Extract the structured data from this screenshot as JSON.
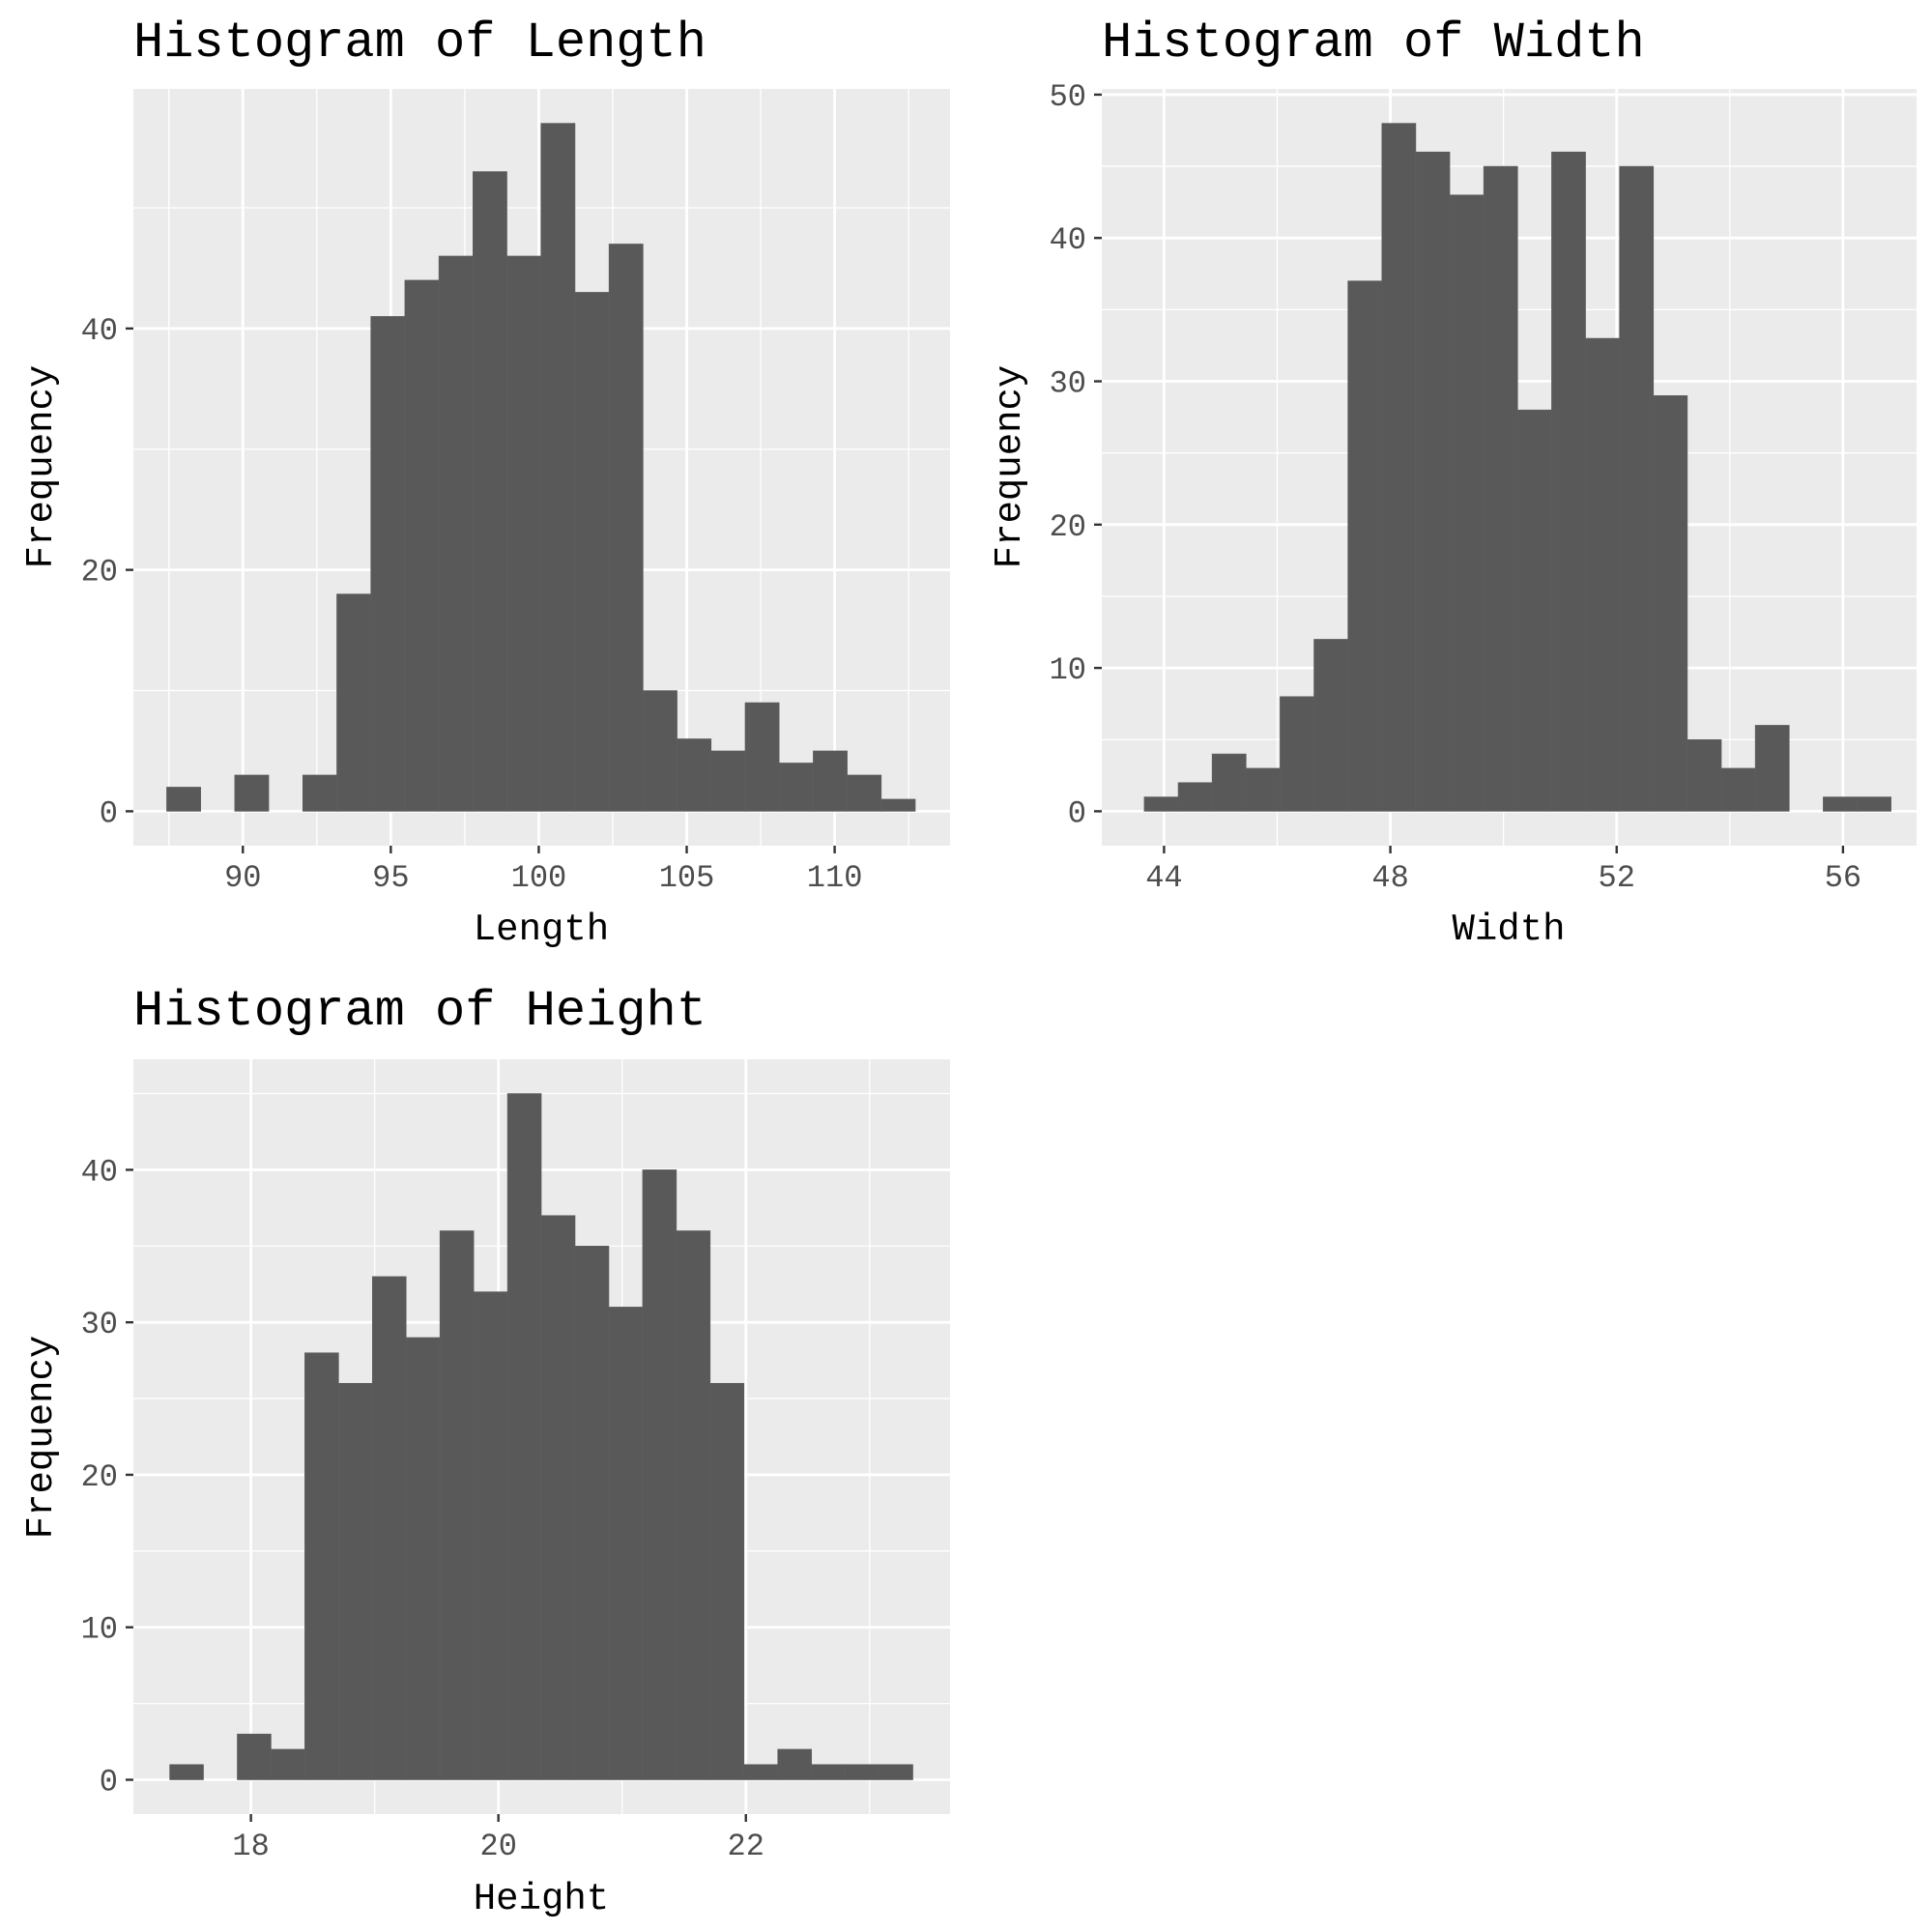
{
  "chart_data": [
    {
      "type": "bar",
      "title": "Histogram of Length",
      "xlabel": "Length",
      "ylabel": "Frequency",
      "xlim": [
        86.3,
        113.9
      ],
      "ylim": [
        -2.85,
        59.85
      ],
      "x_ticks": [
        90,
        95,
        100,
        105,
        110
      ],
      "x_tick_labels": [
        "90",
        "95",
        "100",
        "105",
        "110"
      ],
      "y_ticks": [
        0,
        20,
        40
      ],
      "y_tick_labels": [
        "0",
        "20",
        "40"
      ],
      "bin_width": 1.15,
      "bin_centers": [
        88.0,
        89.15,
        90.3,
        91.45,
        92.6,
        93.75,
        94.9,
        96.05,
        97.2,
        98.35,
        99.5,
        100.65,
        101.8,
        102.95,
        104.1,
        105.25,
        106.4,
        107.55,
        108.7,
        109.85,
        111.0,
        112.15
      ],
      "values": [
        2,
        0,
        3,
        0,
        3,
        18,
        41,
        44,
        46,
        53,
        46,
        57,
        43,
        47,
        10,
        6,
        5,
        9,
        4,
        5,
        3,
        1
      ],
      "grid": true,
      "bar_color": "#595959",
      "panel_color": "#ebebeb"
    },
    {
      "type": "bar",
      "title": "Histogram of Width",
      "xlabel": "Width",
      "ylabel": "Frequency",
      "xlim": [
        42.9,
        57.3
      ],
      "ylim": [
        -2.4,
        50.4
      ],
      "x_ticks": [
        44,
        48,
        52,
        56
      ],
      "x_tick_labels": [
        "44",
        "48",
        "52",
        "56"
      ],
      "y_ticks": [
        0,
        10,
        20,
        30,
        40,
        50
      ],
      "y_tick_labels": [
        "0",
        "10",
        "20",
        "30",
        "40",
        "50"
      ],
      "bin_width": 0.6,
      "bin_centers": [
        43.95,
        44.55,
        45.15,
        45.75,
        46.35,
        46.95,
        47.55,
        48.15,
        48.75,
        49.35,
        49.95,
        50.55,
        51.15,
        51.75,
        52.35,
        52.95,
        53.55,
        54.15,
        54.75,
        55.35,
        55.95,
        56.55
      ],
      "values": [
        1,
        2,
        4,
        3,
        8,
        12,
        37,
        48,
        46,
        43,
        45,
        28,
        46,
        33,
        45,
        29,
        5,
        3,
        6,
        0,
        1,
        1
      ],
      "grid": true,
      "bar_color": "#595959",
      "panel_color": "#ebebeb"
    },
    {
      "type": "bar",
      "title": "Histogram of Height",
      "xlabel": "Height",
      "ylabel": "Frequency",
      "xlim": [
        17.05,
        23.65
      ],
      "ylim": [
        -2.25,
        47.25
      ],
      "x_ticks": [
        18,
        20,
        22
      ],
      "x_tick_labels": [
        "18",
        "20",
        "22"
      ],
      "y_ticks": [
        0,
        10,
        20,
        30,
        40
      ],
      "y_tick_labels": [
        "0",
        "10",
        "20",
        "30",
        "40"
      ],
      "bin_width": 0.273,
      "bin_centers": [
        17.48,
        17.753,
        18.026,
        18.299,
        18.572,
        18.845,
        19.118,
        19.391,
        19.664,
        19.937,
        20.21,
        20.483,
        20.756,
        21.029,
        21.302,
        21.575,
        21.848,
        22.121,
        22.394,
        22.667,
        22.94,
        23.213
      ],
      "values": [
        1,
        0,
        3,
        2,
        28,
        26,
        33,
        29,
        36,
        32,
        45,
        37,
        35,
        31,
        40,
        36,
        26,
        1,
        2,
        1,
        1,
        1
      ],
      "grid": true,
      "bar_color": "#595959",
      "panel_color": "#ebebeb"
    }
  ]
}
